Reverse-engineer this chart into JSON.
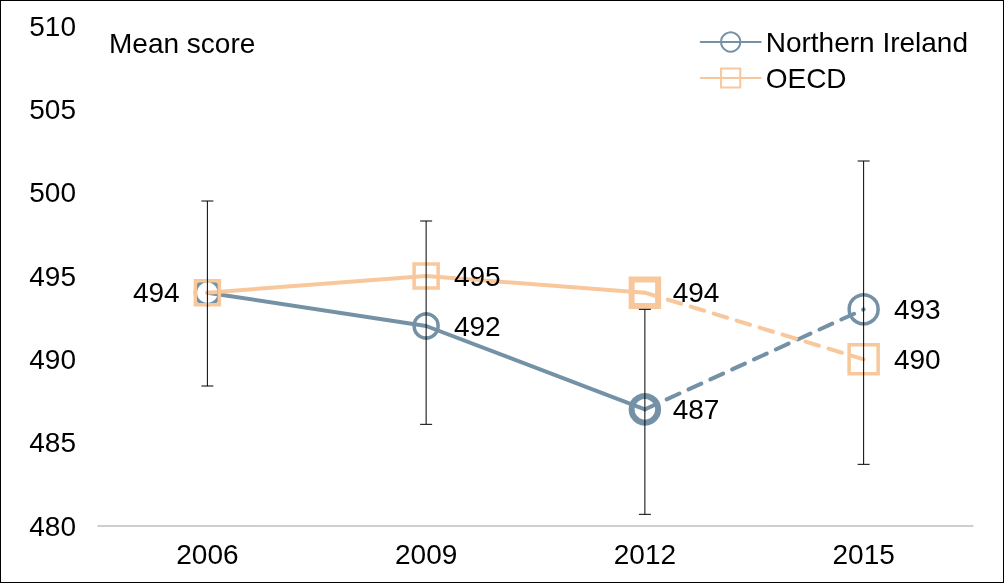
{
  "chart_data": {
    "type": "line",
    "ylabel": "Mean score",
    "categories": [
      "2006",
      "2009",
      "2012",
      "2015"
    ],
    "series": [
      {
        "name": "Northern Ireland",
        "color": "#7591a6",
        "marker": "circle",
        "line_style": "solid",
        "values": [
          494,
          492,
          487,
          null
        ],
        "value_labels": [
          "494",
          "492",
          "487",
          null
        ],
        "errors": [
          [
            488.4,
            499.5
          ],
          [
            486.1,
            498.3
          ],
          [
            480.7,
            493
          ],
          null
        ]
      },
      {
        "color": "#7591a6",
        "marker": "circle",
        "line_style": "dashed",
        "values": [
          null,
          null,
          487,
          493
        ],
        "value_labels": [
          null,
          null,
          null,
          "493"
        ],
        "errors": [
          null,
          null,
          null,
          [
            483.7,
            501.9
          ]
        ]
      },
      {
        "name": "OECD",
        "color": "#f8c89c",
        "marker": "square",
        "line_style": "solid",
        "values": [
          494,
          495,
          494,
          null
        ],
        "value_labels": [
          null,
          "495",
          "494",
          null
        ]
      },
      {
        "color": "#f8c89c",
        "marker": "square",
        "line_style": "dashed",
        "values": [
          null,
          null,
          494,
          490
        ],
        "value_labels": [
          null,
          null,
          null,
          "490"
        ]
      }
    ],
    "ylim": [
      480,
      510
    ],
    "yticks": [
      480,
      485,
      490,
      495,
      500,
      505,
      510
    ],
    "grid": false,
    "legend": "top right"
  }
}
